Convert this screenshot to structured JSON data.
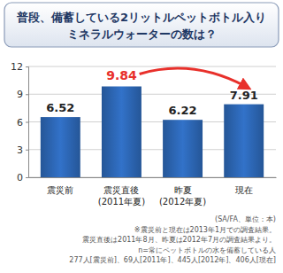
{
  "chart_data": {
    "type": "bar",
    "title": [
      "普段、備蓄している2リットルペットボトル入り",
      "ミネラルウォーターの数は？"
    ],
    "categories": [
      "震災前",
      "震災直後\n(2011年夏)",
      "昨夏\n(2012年夏)",
      "現在"
    ],
    "values": [
      6.52,
      9.84,
      6.22,
      7.91
    ],
    "color": "#2b63ae",
    "ylim": [
      0,
      12
    ],
    "yticks": [
      0,
      3,
      6,
      9,
      12
    ],
    "grid": true,
    "data_labels": true,
    "notes": [
      "(SA/FA、単位：本)",
      "※震災前と現在は2013年1月での調査結果。",
      "震災直後は2011年8月、昨夏は2012年7月の調査結果より。",
      "n=常にペットボトルの水を備蓄している人",
      "277人[震災前]、69人[2011年]、445人[2012年]、406人[現在]"
    ]
  }
}
